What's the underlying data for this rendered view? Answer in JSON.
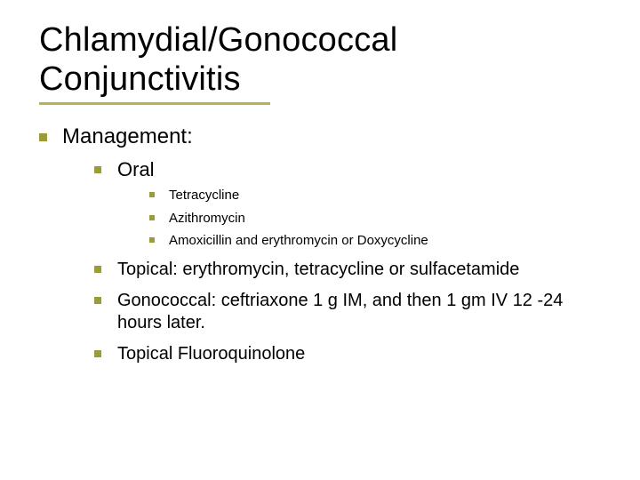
{
  "title": "Chlamydial/Gonococcal Conjunctivitis",
  "colors": {
    "bullet": "#9b9b3a",
    "underline": "#b9b44a",
    "text": "#000000",
    "background": "#ffffff"
  },
  "typography": {
    "title_fontsize": 38,
    "lvl1_fontsize": 24,
    "lvl2_fontsize": 22,
    "lvl3_fontsize": 15,
    "lvl2b_fontsize": 20,
    "font_family": "Verdana"
  },
  "content": {
    "lvl1": {
      "label": "Management:"
    },
    "oral": {
      "label": "Oral",
      "items": [
        "Tetracycline",
        "Azithromycin",
        "Amoxicillin and erythromycin or Doxycycline"
      ]
    },
    "rest": [
      "Topical:   erythromycin, tetracycline or sulfacetamide",
      "Gonococcal: ceftriaxone 1 g IM, and then 1 gm IV 12 -24 hours later.",
      "Topical Fluoroquinolone"
    ]
  }
}
